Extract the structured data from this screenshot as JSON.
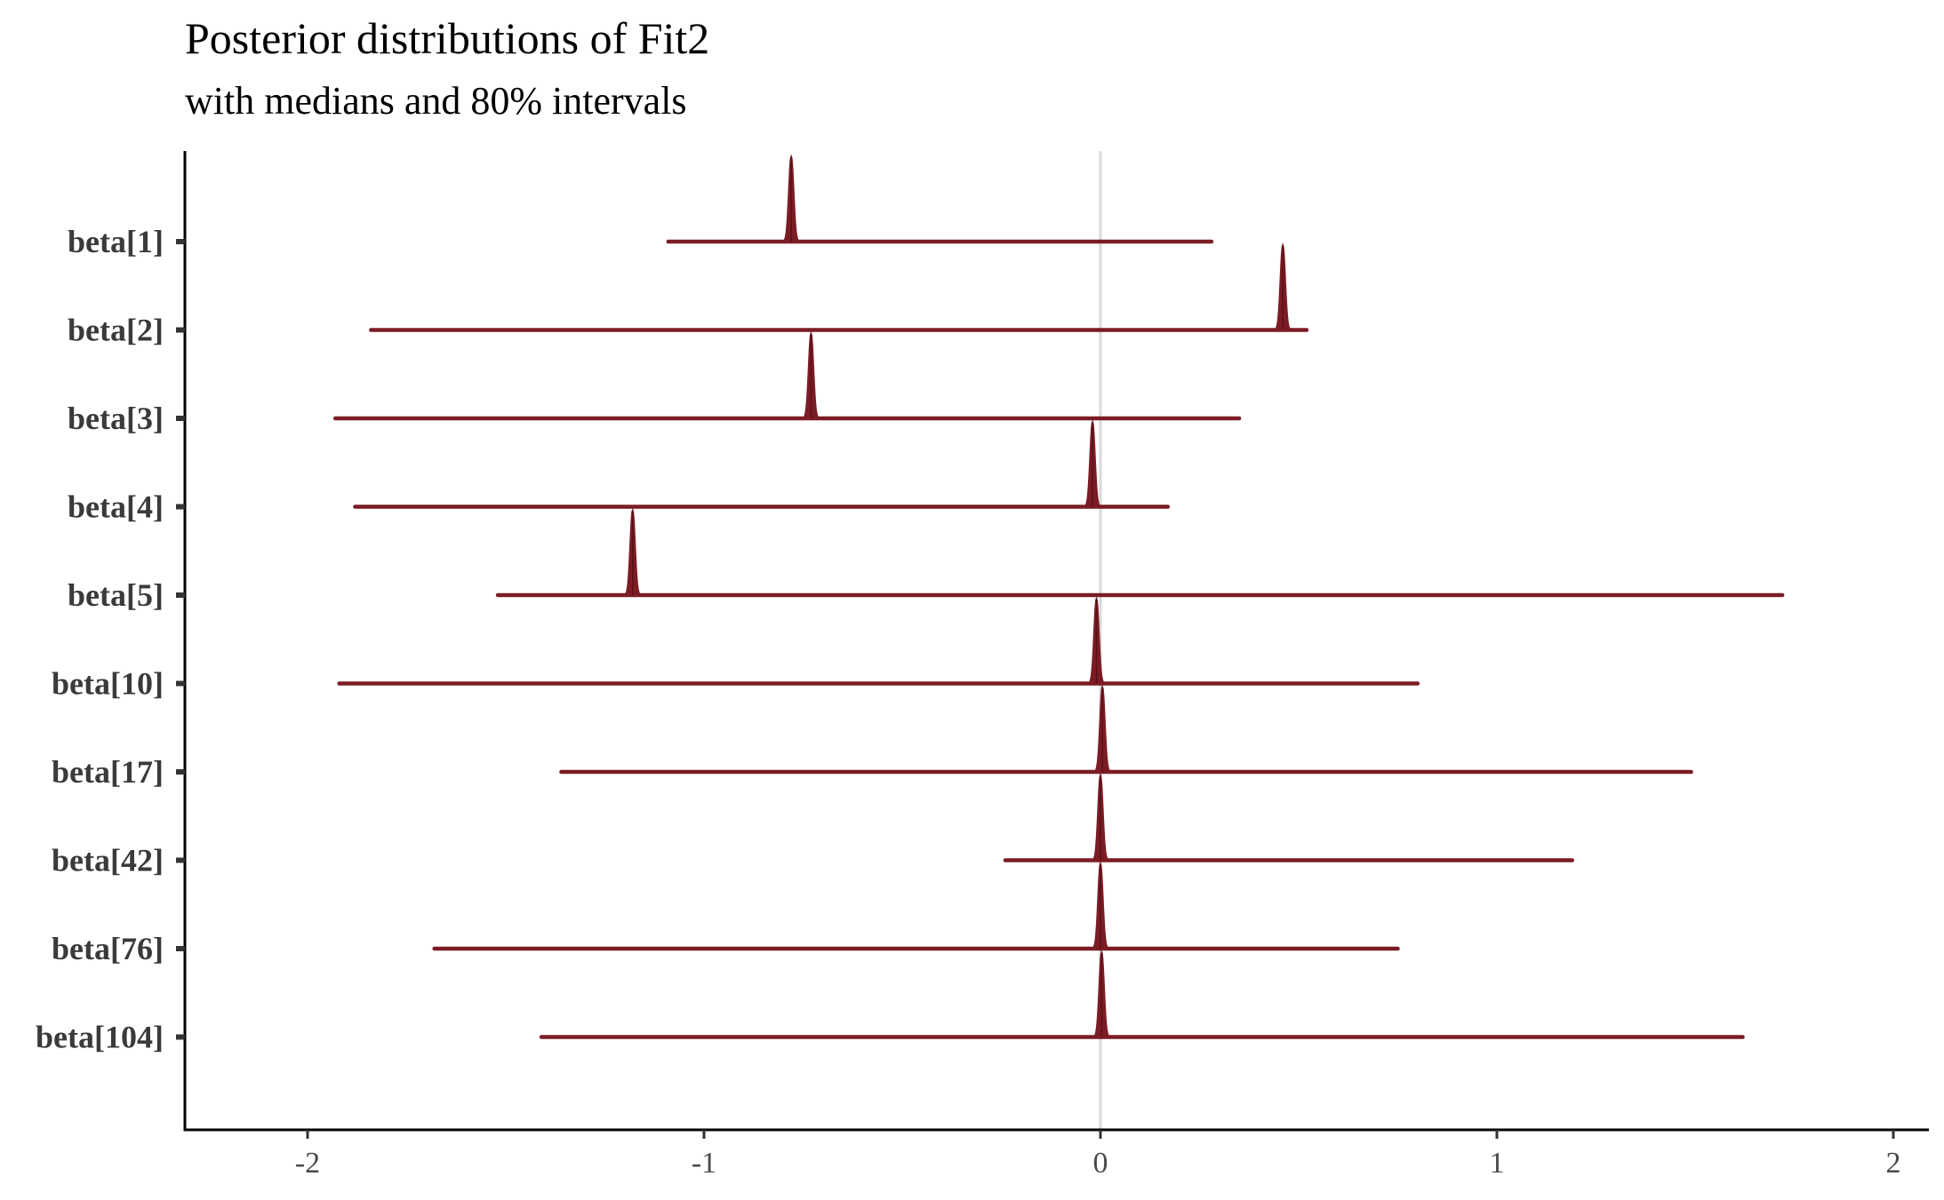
{
  "chart_data": {
    "type": "ridgeline-interval",
    "title": "Posterior distributions of Fit2",
    "subtitle": "with medians and 80% intervals",
    "xlim": [
      -2.3,
      2.08
    ],
    "x_ticks": [
      -2,
      -1,
      0,
      1,
      2
    ],
    "x_tick_labels": [
      "-2",
      "-1",
      "0",
      "1",
      "2"
    ],
    "reference_line_x": 0,
    "grid": false,
    "colors": {
      "density": "#7b1c24",
      "interval": "#7b1c24",
      "reference": "#d9d9d9",
      "axis": "#000000"
    },
    "series": [
      {
        "name": "beta[1]",
        "median": -0.78,
        "interval": [
          -1.09,
          0.28
        ]
      },
      {
        "name": "beta[2]",
        "median": 0.46,
        "interval": [
          -1.84,
          0.52
        ]
      },
      {
        "name": "beta[3]",
        "median": -0.73,
        "interval": [
          -1.93,
          0.35
        ]
      },
      {
        "name": "beta[4]",
        "median": -0.02,
        "interval": [
          -1.88,
          0.17
        ]
      },
      {
        "name": "beta[5]",
        "median": -1.18,
        "interval": [
          -1.52,
          1.72
        ]
      },
      {
        "name": "beta[10]",
        "median": -0.01,
        "interval": [
          -1.92,
          0.8
        ]
      },
      {
        "name": "beta[17]",
        "median": 0.005,
        "interval": [
          -1.36,
          1.49
        ]
      },
      {
        "name": "beta[42]",
        "median": 0.0,
        "interval": [
          -0.24,
          1.19
        ]
      },
      {
        "name": "beta[76]",
        "median": 0.0,
        "interval": [
          -1.68,
          0.75
        ]
      },
      {
        "name": "beta[104]",
        "median": 0.003,
        "interval": [
          -1.41,
          1.62
        ]
      }
    ]
  }
}
